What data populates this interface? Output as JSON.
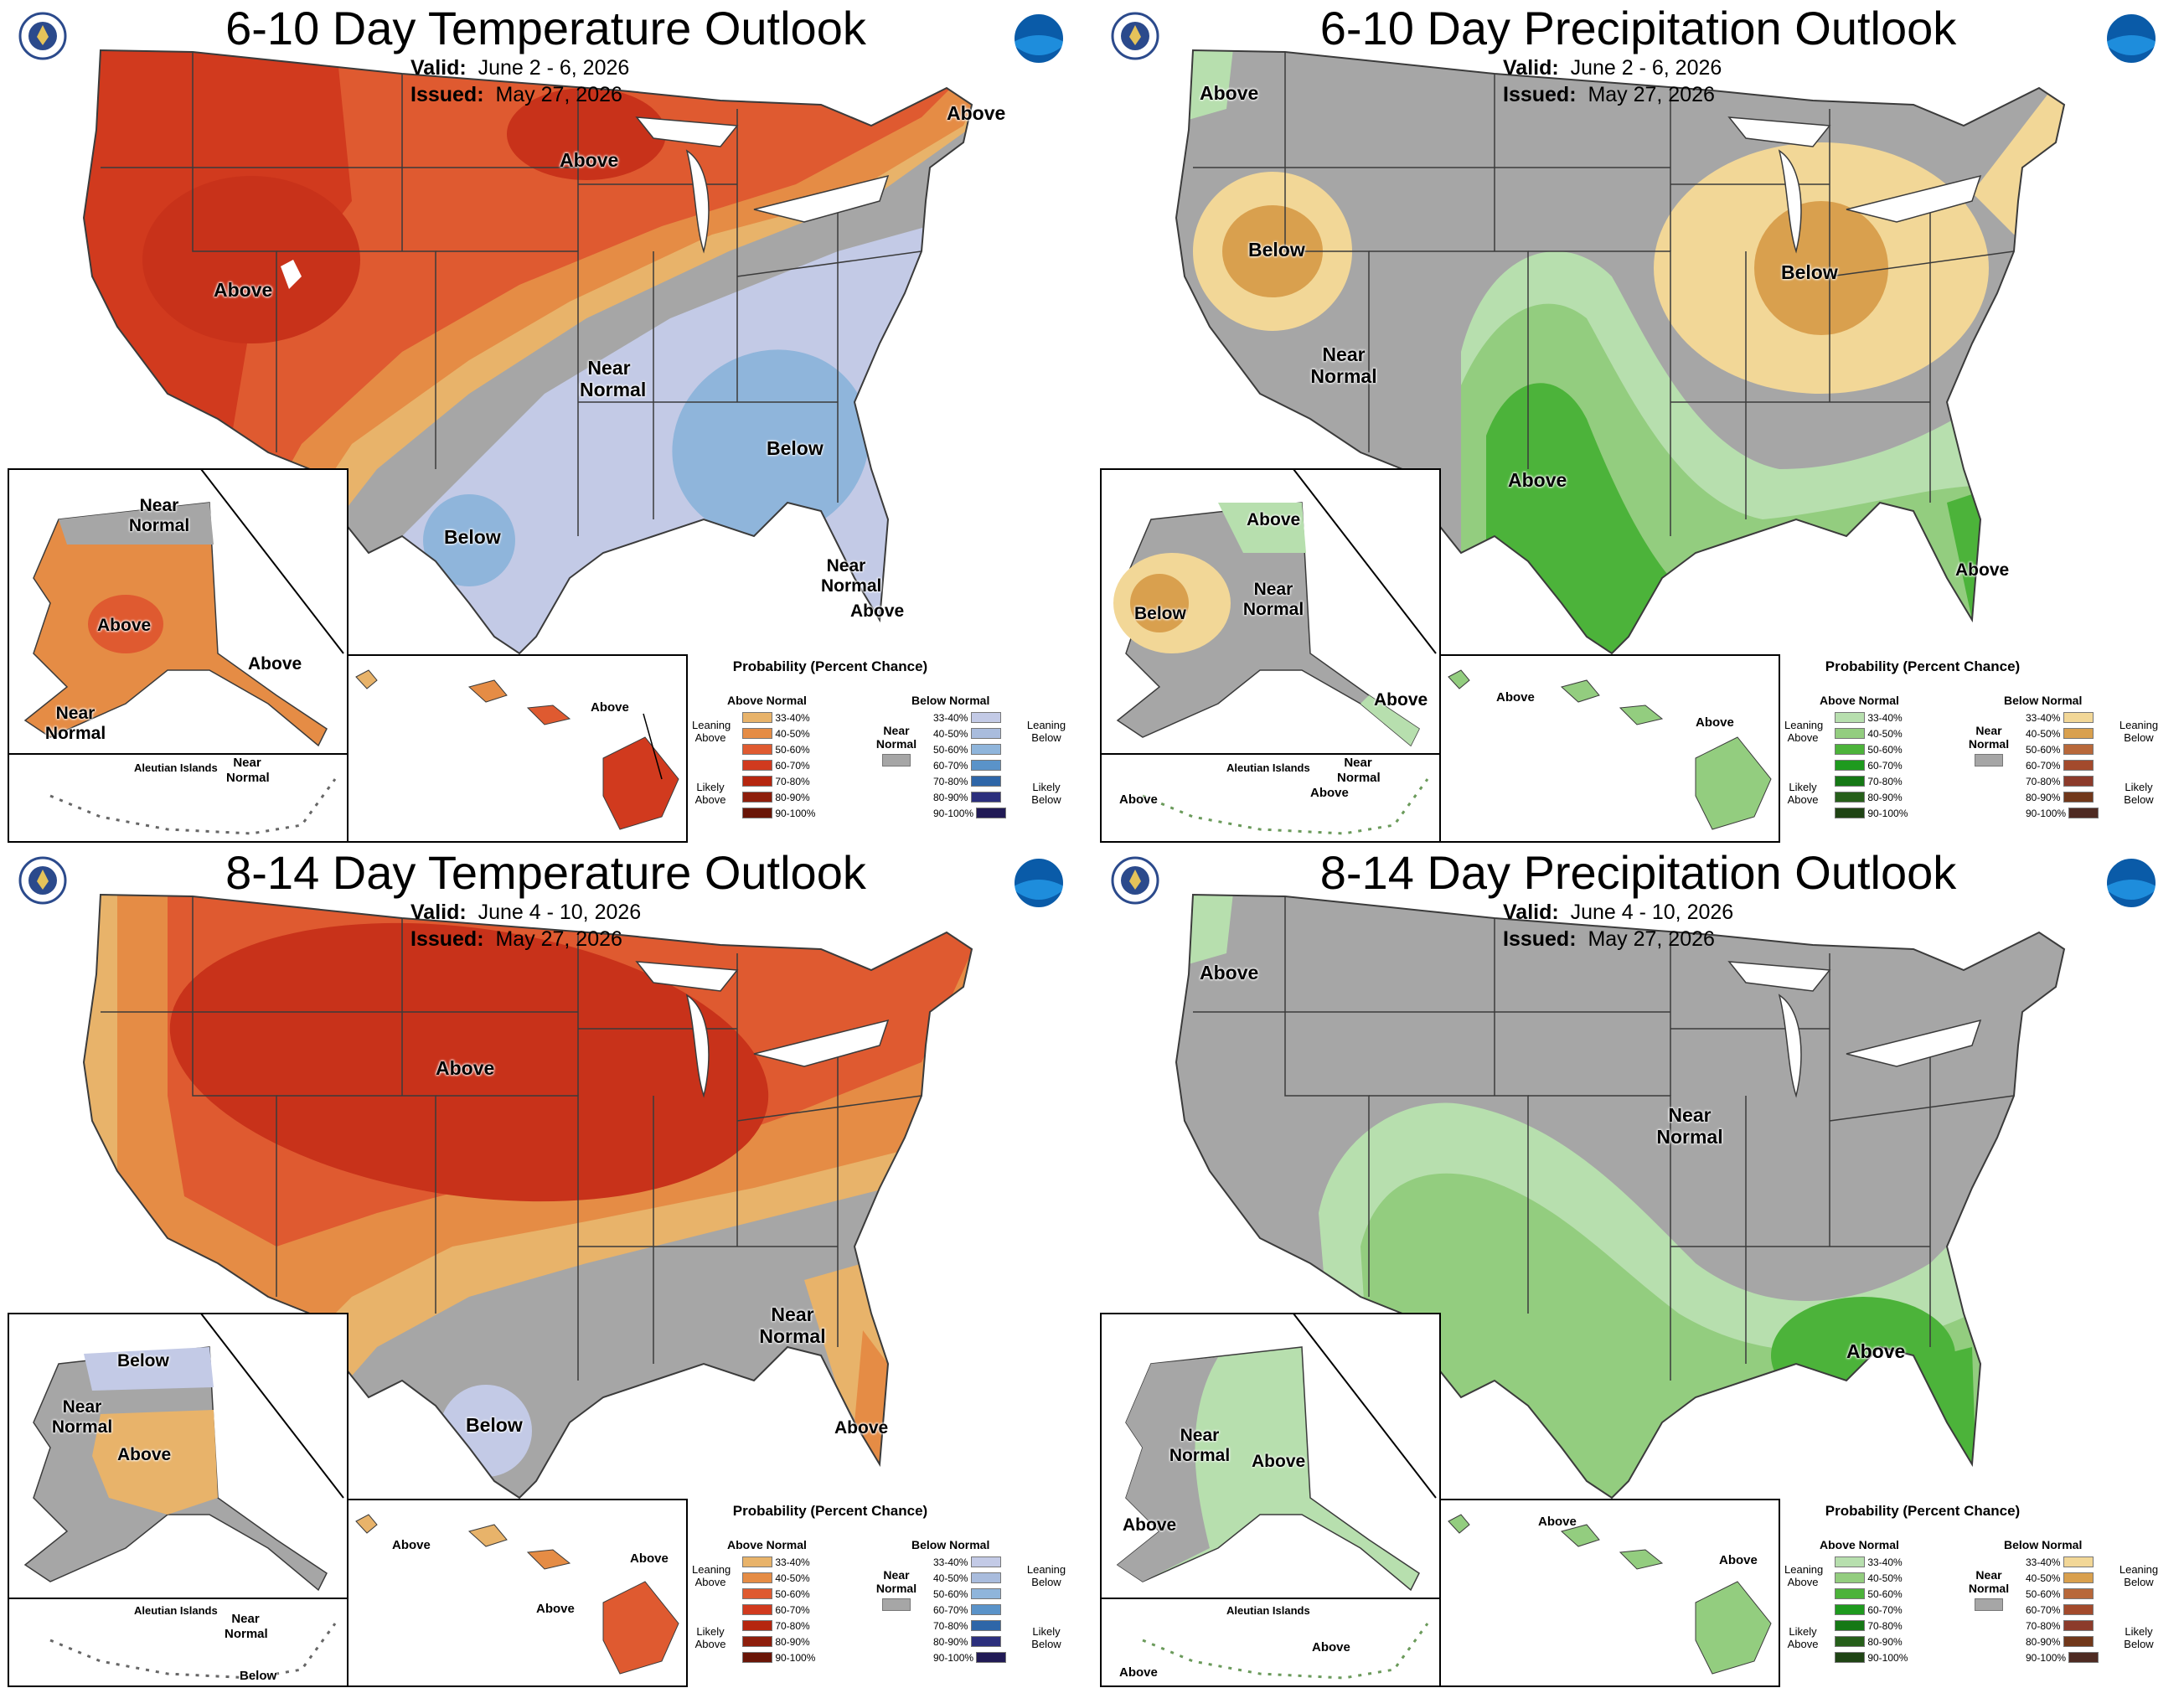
{
  "panels": [
    {
      "id": "p1",
      "title": "6-10 Day Temperature Outlook",
      "valid_label": "Valid:",
      "valid": "June 2 - 6, 2026",
      "issued_label": "Issued:",
      "issued": "May 27, 2026",
      "labels": {
        "main": [
          "Above",
          "Above",
          "Above",
          "Near Normal",
          "Below",
          "Below",
          "Near Normal",
          "Above"
        ],
        "alaska": [
          "Near Normal",
          "Above",
          "Above",
          "Near Normal"
        ],
        "aleutian": [
          "Aleutian Islands",
          "Near Normal"
        ],
        "hawaii": [
          "Above"
        ]
      }
    },
    {
      "id": "p2",
      "title": "6-10 Day Precipitation Outlook",
      "valid_label": "Valid:",
      "valid": "June 2 - 6, 2026",
      "issued_label": "Issued:",
      "issued": "May 27, 2026",
      "labels": {
        "main": [
          "Above",
          "Below",
          "Near Normal",
          "Above",
          "Below",
          "Above"
        ],
        "alaska": [
          "Above",
          "Below",
          "Near Normal",
          "Above"
        ],
        "aleutian": [
          "Aleutian Islands",
          "Near Normal",
          "Above",
          "Above"
        ],
        "hawaii": [
          "Above",
          "Above"
        ]
      }
    },
    {
      "id": "p3",
      "title": "8-14 Day Temperature Outlook",
      "valid_label": "Valid:",
      "valid": "June 4 - 10, 2026",
      "issued_label": "Issued:",
      "issued": "May 27, 2026",
      "labels": {
        "main": [
          "Above",
          "Near Normal",
          "Below",
          "Above"
        ],
        "alaska": [
          "Below",
          "Near Normal",
          "Above"
        ],
        "aleutian": [
          "Aleutian Islands",
          "Near Normal",
          "Below"
        ],
        "hawaii": [
          "Above",
          "Above",
          "Above"
        ]
      }
    },
    {
      "id": "p4",
      "title": "8-14 Day Precipitation Outlook",
      "valid_label": "Valid:",
      "valid": "June 4 - 10, 2026",
      "issued_label": "Issued:",
      "issued": "May 27, 2026",
      "labels": {
        "main": [
          "Above",
          "Near Normal",
          "Above"
        ],
        "alaska": [
          "Near Normal",
          "Above",
          "Above"
        ],
        "aleutian": [
          "Aleutian Islands",
          "Above",
          "Above"
        ],
        "hawaii": [
          "Above",
          "Above"
        ]
      }
    }
  ],
  "legend_temp": {
    "title": "Probability (Percent Chance)",
    "left_head": "Above Normal",
    "right_head": "Below Normal",
    "near_normal": "Near Normal",
    "left_side": [
      "Leaning Above",
      "Likely Above"
    ],
    "right_side": [
      "Leaning Below",
      "Likely Below"
    ],
    "bins": [
      "33-40%",
      "40-50%",
      "50-60%",
      "60-70%",
      "70-80%",
      "80-90%",
      "90-100%"
    ],
    "left_colors": [
      "#e8b36a",
      "#e58c45",
      "#df5a30",
      "#d13a1e",
      "#b5260f",
      "#8e1e0c",
      "#6a1507"
    ],
    "right_colors": [
      "#c3cae6",
      "#a9bcdd",
      "#8fb5db",
      "#5a93c9",
      "#2e66a8",
      "#2c2f7d",
      "#211a55"
    ]
  },
  "legend_prcp": {
    "title": "Probability (Percent Chance)",
    "left_head": "Above Normal",
    "right_head": "Below Normal",
    "near_normal": "Near Normal",
    "left_side": [
      "Leaning Above",
      "Likely Above"
    ],
    "right_side": [
      "Leaning Below",
      "Likely Below"
    ],
    "bins": [
      "33-40%",
      "40-50%",
      "50-60%",
      "60-70%",
      "70-80%",
      "80-90%",
      "90-100%"
    ],
    "left_colors": [
      "#b7dfae",
      "#93cd7f",
      "#4cb33a",
      "#1e9a1e",
      "#157815",
      "#265f1a",
      "#1f4414"
    ],
    "right_colors": [
      "#f2d797",
      "#d9a04e",
      "#b8683a",
      "#a34a2c",
      "#8c3b2b",
      "#71381b",
      "#4e2a22"
    ]
  },
  "colors": {
    "near_normal": "#a6a6a6",
    "state_line": "#3b3b3b",
    "water": "#ffffff"
  }
}
